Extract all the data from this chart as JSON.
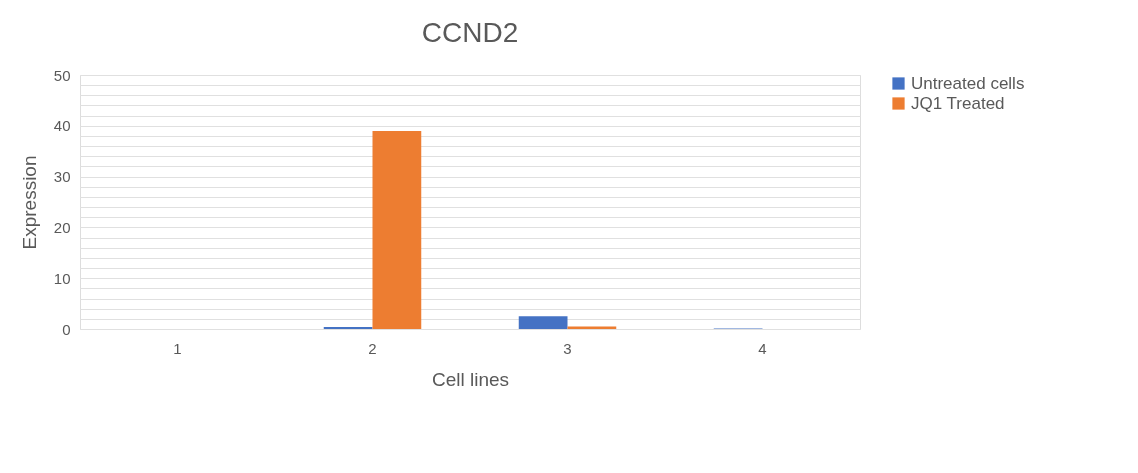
{
  "chart_data": {
    "type": "bar",
    "title": "CCND2",
    "xlabel": "Cell lines",
    "ylabel": "Expression",
    "categories": [
      "1",
      "2",
      "3",
      "4"
    ],
    "series": [
      {
        "name": "Untreated cells",
        "color": "#4472c4",
        "values": [
          0,
          0.4,
          2.5,
          0.1
        ]
      },
      {
        "name": "JQ1 Treated",
        "color": "#ed7d31",
        "values": [
          0,
          39,
          0.5,
          0
        ]
      }
    ],
    "ylim": [
      0,
      50
    ],
    "yticks": [
      0,
      {
        "value": 2,
        "label": null
      },
      {
        "value": 4,
        "label": null
      },
      {
        "value": 6,
        "label": null
      },
      {
        "value": 8,
        "label": null
      },
      10,
      {
        "value": 12,
        "label": null
      },
      {
        "value": 14,
        "label": null
      },
      {
        "value": 16,
        "label": null
      },
      {
        "value": 18,
        "label": null
      },
      20,
      {
        "value": 22,
        "label": null
      },
      {
        "value": 24,
        "label": null
      },
      {
        "value": 26,
        "label": null
      },
      {
        "value": 28,
        "label": null
      },
      30,
      {
        "value": 32,
        "label": null
      },
      {
        "value": 34,
        "label": null
      },
      {
        "value": 36,
        "label": null
      },
      {
        "value": 38,
        "label": null
      },
      40,
      {
        "value": 42,
        "label": null
      },
      {
        "value": 44,
        "label": null
      },
      {
        "value": 46,
        "label": null
      },
      {
        "value": 48,
        "label": null
      },
      50
    ],
    "grid": "y",
    "legend": "right"
  }
}
